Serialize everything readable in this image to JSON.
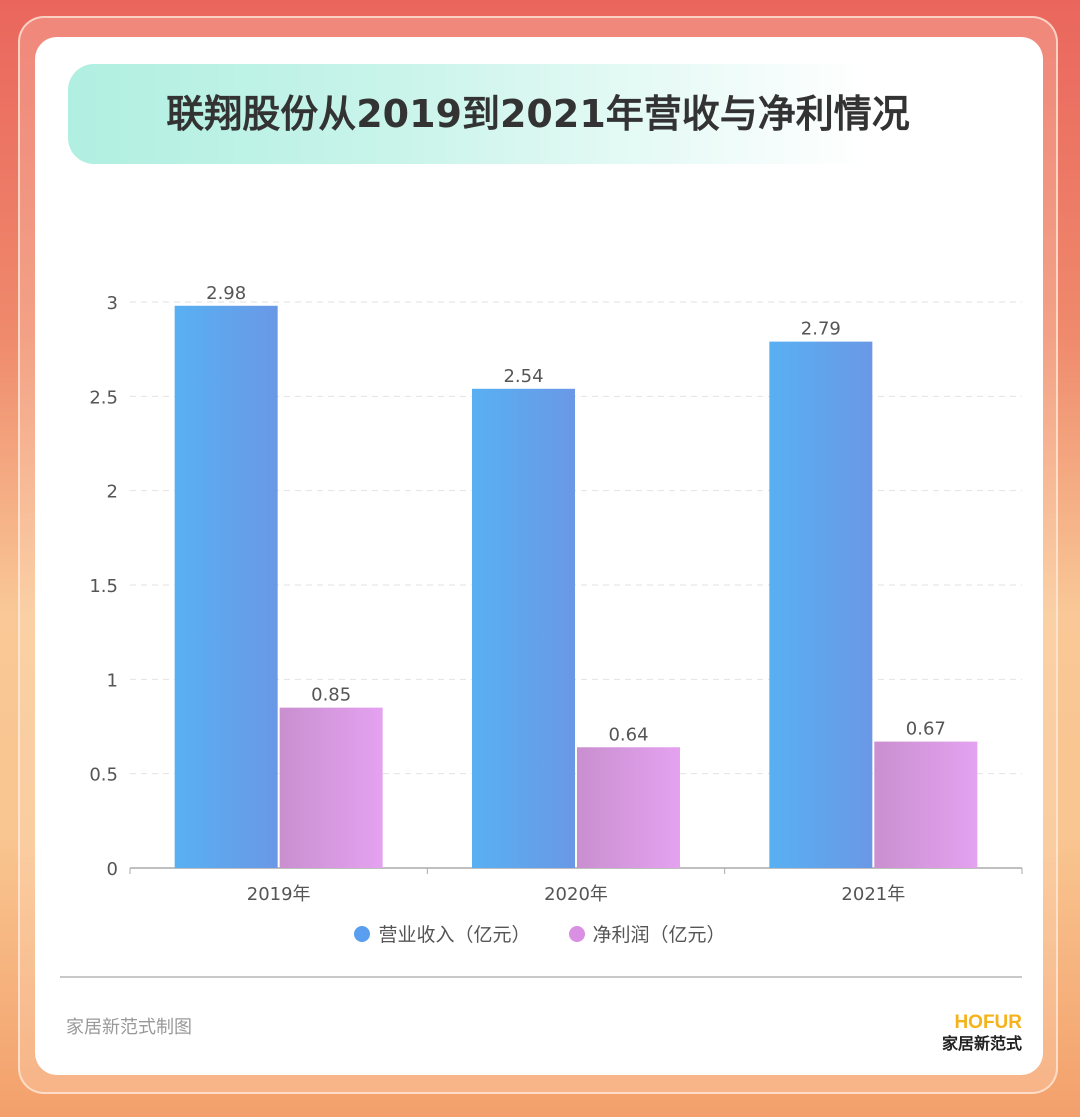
{
  "title": "联翔股份从2019到2021年营收与净利情况",
  "chart_data": {
    "type": "bar",
    "categories": [
      "2019年",
      "2020年",
      "2021年"
    ],
    "series": [
      {
        "name": "营业收入（亿元）",
        "values": [
          2.98,
          2.54,
          2.79
        ],
        "color": "#5aaef0"
      },
      {
        "name": "净利润（亿元）",
        "values": [
          0.85,
          0.64,
          0.67
        ],
        "color": "#d995e6"
      }
    ],
    "yticks": [
      "0",
      "0.5",
      "1",
      "1.5",
      "2",
      "2.5",
      "3"
    ],
    "ylim": [
      0,
      3
    ],
    "grid": true,
    "legend_position": "bottom"
  },
  "footer": {
    "credit": "家居新范式制图",
    "logo_en": "HOFUR",
    "logo_cn": "家居新范式"
  }
}
